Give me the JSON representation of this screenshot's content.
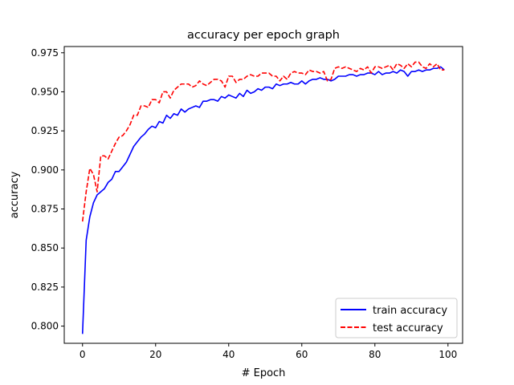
{
  "chart_data": {
    "type": "line",
    "title": "accuracy per epoch graph",
    "xlabel": "# Epoch",
    "ylabel": "accuracy",
    "xlim": [
      -5,
      104
    ],
    "ylim": [
      0.789,
      0.979
    ],
    "x_ticks": [
      0,
      20,
      40,
      60,
      80,
      100
    ],
    "x_tick_labels": [
      "0",
      "20",
      "40",
      "60",
      "80",
      "100"
    ],
    "y_ticks": [
      0.8,
      0.825,
      0.85,
      0.875,
      0.9,
      0.925,
      0.95,
      0.975
    ],
    "y_tick_labels": [
      "0.800",
      "0.825",
      "0.850",
      "0.875",
      "0.900",
      "0.925",
      "0.950",
      "0.975"
    ],
    "grid": false,
    "legend_position": "lower-right",
    "x": [
      0,
      1,
      2,
      3,
      4,
      5,
      6,
      7,
      8,
      9,
      10,
      11,
      12,
      13,
      14,
      15,
      16,
      17,
      18,
      19,
      20,
      21,
      22,
      23,
      24,
      25,
      26,
      27,
      28,
      29,
      30,
      31,
      32,
      33,
      34,
      35,
      36,
      37,
      38,
      39,
      40,
      41,
      42,
      43,
      44,
      45,
      46,
      47,
      48,
      49,
      50,
      51,
      52,
      53,
      54,
      55,
      56,
      57,
      58,
      59,
      60,
      61,
      62,
      63,
      64,
      65,
      66,
      67,
      68,
      69,
      70,
      71,
      72,
      73,
      74,
      75,
      76,
      77,
      78,
      79,
      80,
      81,
      82,
      83,
      84,
      85,
      86,
      87,
      88,
      89,
      90,
      91,
      92,
      93,
      94,
      95,
      96,
      97,
      98,
      99
    ],
    "series": [
      {
        "name": "train accuracy",
        "color": "#0000ff",
        "line_style": "solid",
        "values": [
          0.795,
          0.855,
          0.87,
          0.879,
          0.884,
          0.886,
          0.888,
          0.892,
          0.894,
          0.899,
          0.899,
          0.902,
          0.905,
          0.91,
          0.915,
          0.918,
          0.921,
          0.923,
          0.926,
          0.928,
          0.927,
          0.931,
          0.93,
          0.935,
          0.933,
          0.936,
          0.935,
          0.939,
          0.937,
          0.939,
          0.94,
          0.941,
          0.94,
          0.944,
          0.944,
          0.945,
          0.945,
          0.944,
          0.947,
          0.946,
          0.948,
          0.947,
          0.946,
          0.949,
          0.947,
          0.951,
          0.949,
          0.95,
          0.952,
          0.951,
          0.953,
          0.953,
          0.952,
          0.955,
          0.954,
          0.955,
          0.955,
          0.956,
          0.955,
          0.955,
          0.957,
          0.955,
          0.957,
          0.958,
          0.958,
          0.959,
          0.958,
          0.958,
          0.957,
          0.958,
          0.96,
          0.96,
          0.96,
          0.961,
          0.961,
          0.96,
          0.961,
          0.961,
          0.962,
          0.962,
          0.961,
          0.963,
          0.961,
          0.962,
          0.962,
          0.963,
          0.962,
          0.964,
          0.963,
          0.96,
          0.963,
          0.963,
          0.964,
          0.963,
          0.964,
          0.964,
          0.965,
          0.965,
          0.966,
          0.964
        ]
      },
      {
        "name": "test accuracy",
        "color": "#ff0000",
        "line_style": "dashed",
        "values": [
          0.867,
          0.886,
          0.901,
          0.897,
          0.886,
          0.909,
          0.909,
          0.907,
          0.912,
          0.917,
          0.921,
          0.922,
          0.925,
          0.929,
          0.935,
          0.935,
          0.941,
          0.941,
          0.94,
          0.945,
          0.945,
          0.943,
          0.95,
          0.95,
          0.946,
          0.951,
          0.953,
          0.955,
          0.955,
          0.955,
          0.953,
          0.954,
          0.957,
          0.955,
          0.954,
          0.956,
          0.958,
          0.958,
          0.957,
          0.953,
          0.96,
          0.96,
          0.956,
          0.958,
          0.958,
          0.96,
          0.961,
          0.96,
          0.96,
          0.962,
          0.962,
          0.962,
          0.96,
          0.96,
          0.957,
          0.96,
          0.958,
          0.962,
          0.963,
          0.962,
          0.962,
          0.961,
          0.964,
          0.963,
          0.963,
          0.962,
          0.963,
          0.957,
          0.958,
          0.965,
          0.966,
          0.965,
          0.966,
          0.965,
          0.964,
          0.963,
          0.965,
          0.964,
          0.966,
          0.962,
          0.966,
          0.966,
          0.965,
          0.966,
          0.967,
          0.964,
          0.968,
          0.967,
          0.965,
          0.968,
          0.966,
          0.969,
          0.969,
          0.966,
          0.965,
          0.968,
          0.966,
          0.968,
          0.964,
          0.964
        ]
      }
    ]
  }
}
